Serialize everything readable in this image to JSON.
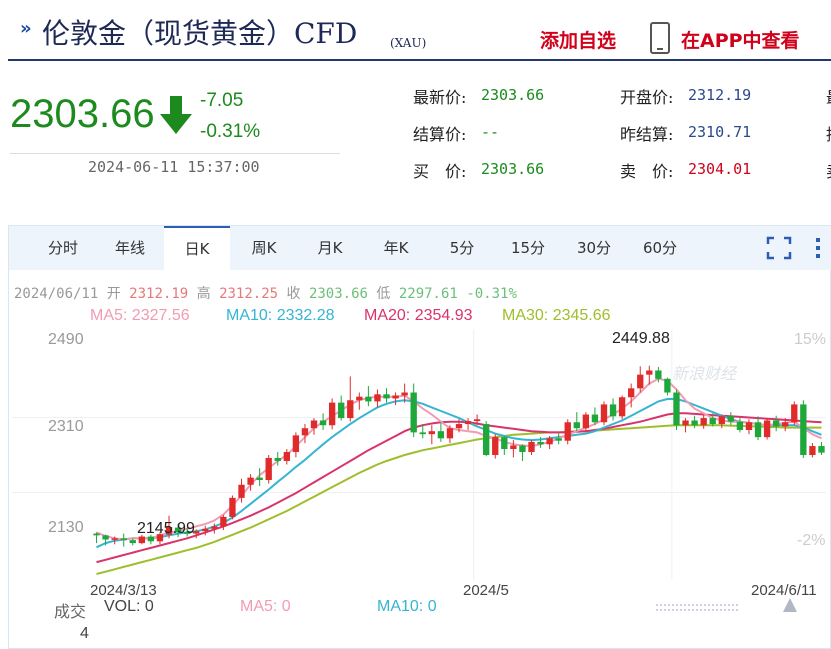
{
  "header": {
    "title": "伦敦金（现货黄金）CFD",
    "title_suffix": "(XAU)",
    "add_watchlist": "添加自选",
    "view_in_app": "在APP中查看"
  },
  "price": {
    "last": "2303.66",
    "change": "-7.05",
    "change_pct": "-0.31%",
    "timestamp": "2024-06-11 15:37:00",
    "direction": "down",
    "down_color": "#1c8a1c"
  },
  "quotes": [
    {
      "label": "最新价:",
      "value": "2303.66"
    },
    {
      "label": "结算价:",
      "value": "--"
    },
    {
      "label": "买　价:",
      "value": "2303.66"
    },
    {
      "label": "开盘价:",
      "value": "2312.19"
    },
    {
      "label": "昨结算:",
      "value": "2310.71"
    },
    {
      "label": "卖　价:",
      "value": "2304.01"
    }
  ],
  "quote_edge": [
    "最",
    "持",
    "卖"
  ],
  "tabs": [
    "分时",
    "年线",
    "日K",
    "周K",
    "月K",
    "年K",
    "5分",
    "15分",
    "30分",
    "60分"
  ],
  "active_tab": "日K",
  "icons": {
    "fullscreen": "fullscreen-icon",
    "more": "more-icon"
  },
  "legend": {
    "date": "2024/06/11",
    "open_label": "开",
    "open": "2312.19",
    "high_label": "高",
    "high": "2312.25",
    "close_label": "收",
    "close": "2303.66",
    "low_label": "低",
    "low": "2297.61",
    "pct": "-0.31%"
  },
  "ma_legend": [
    {
      "text": "MA5: 2327.56",
      "color": "#f29bb3"
    },
    {
      "text": "MA10: 2332.28",
      "color": "#35b5d2"
    },
    {
      "text": "MA20: 2354.93",
      "color": "#d9336b"
    },
    {
      "text": "MA30: 2345.66",
      "color": "#9fbe2c"
    }
  ],
  "watermark": "新浪财经",
  "volume_legend": {
    "label": "成交",
    "vol": "VOL: 0",
    "ma5": "MA5: 0",
    "ma10": "MA10: 0",
    "ma5_color": "#f29bb3",
    "ma10_color": "#35b5d2",
    "axis_max": "4"
  },
  "colors": {
    "up": "#e02b2b",
    "down": "#1ea83c",
    "accent": "#2c5fb3"
  },
  "chart_data": {
    "type": "candlestick",
    "y_ticks": [
      "2490",
      "2310",
      "2130"
    ],
    "pct_ticks": [
      "15%",
      "-2%"
    ],
    "ylim": [
      2090,
      2510
    ],
    "x_labels": [
      "2024/3/13",
      "2024/5",
      "2024/6/11"
    ],
    "annotations": {
      "high": "2449.88",
      "low": "2145.99"
    },
    "candles": [
      [
        2168,
        2170,
        2152,
        2165
      ],
      [
        2165,
        2166,
        2148,
        2158
      ],
      [
        2158,
        2163,
        2150,
        2160
      ],
      [
        2160,
        2168,
        2146,
        2157
      ],
      [
        2157,
        2160,
        2148,
        2152
      ],
      [
        2152,
        2166,
        2150,
        2163
      ],
      [
        2163,
        2166,
        2150,
        2155
      ],
      [
        2155,
        2170,
        2150,
        2167
      ],
      [
        2166,
        2198,
        2160,
        2179
      ],
      [
        2178,
        2184,
        2162,
        2170
      ],
      [
        2170,
        2178,
        2163,
        2168
      ],
      [
        2168,
        2175,
        2160,
        2172
      ],
      [
        2172,
        2181,
        2165,
        2176
      ],
      [
        2176,
        2185,
        2168,
        2180
      ],
      [
        2180,
        2199,
        2174,
        2196
      ],
      [
        2196,
        2232,
        2192,
        2228
      ],
      [
        2228,
        2260,
        2220,
        2250
      ],
      [
        2250,
        2268,
        2240,
        2262
      ],
      [
        2262,
        2278,
        2248,
        2258
      ],
      [
        2258,
        2300,
        2252,
        2295
      ],
      [
        2295,
        2305,
        2282,
        2290
      ],
      [
        2290,
        2310,
        2284,
        2305
      ],
      [
        2305,
        2338,
        2296,
        2333
      ],
      [
        2333,
        2352,
        2320,
        2345
      ],
      [
        2345,
        2362,
        2334,
        2358
      ],
      [
        2358,
        2370,
        2342,
        2350
      ],
      [
        2350,
        2395,
        2343,
        2388
      ],
      [
        2388,
        2400,
        2358,
        2362
      ],
      [
        2362,
        2432,
        2356,
        2392
      ],
      [
        2392,
        2405,
        2376,
        2398
      ],
      [
        2398,
        2416,
        2382,
        2390
      ],
      [
        2390,
        2410,
        2380,
        2402
      ],
      [
        2402,
        2412,
        2388,
        2395
      ],
      [
        2395,
        2405,
        2384,
        2400
      ],
      [
        2400,
        2420,
        2388,
        2405
      ],
      [
        2405,
        2420,
        2330,
        2338
      ],
      [
        2338,
        2352,
        2328,
        2335
      ],
      [
        2335,
        2350,
        2318,
        2340
      ],
      [
        2340,
        2355,
        2322,
        2328
      ],
      [
        2328,
        2350,
        2320,
        2345
      ],
      [
        2345,
        2360,
        2338,
        2352
      ],
      [
        2352,
        2362,
        2342,
        2357
      ],
      [
        2357,
        2368,
        2350,
        2360
      ],
      [
        2352,
        2357,
        2298,
        2300
      ],
      [
        2300,
        2335,
        2294,
        2330
      ],
      [
        2330,
        2332,
        2300,
        2310
      ],
      [
        2310,
        2325,
        2296,
        2316
      ],
      [
        2316,
        2318,
        2290,
        2305
      ],
      [
        2305,
        2325,
        2300,
        2322
      ],
      [
        2322,
        2330,
        2312,
        2318
      ],
      [
        2318,
        2332,
        2310,
        2328
      ],
      [
        2328,
        2336,
        2318,
        2324
      ],
      [
        2324,
        2360,
        2318,
        2355
      ],
      [
        2355,
        2372,
        2340,
        2345
      ],
      [
        2345,
        2372,
        2340,
        2368
      ],
      [
        2368,
        2380,
        2350,
        2355
      ],
      [
        2355,
        2390,
        2350,
        2385
      ],
      [
        2385,
        2395,
        2358,
        2365
      ],
      [
        2365,
        2400,
        2360,
        2397
      ],
      [
        2397,
        2420,
        2380,
        2412
      ],
      [
        2412,
        2449,
        2405,
        2435
      ],
      [
        2435,
        2450,
        2418,
        2442
      ],
      [
        2442,
        2448,
        2422,
        2428
      ],
      [
        2428,
        2430,
        2400,
        2405
      ],
      [
        2405,
        2410,
        2342,
        2350
      ],
      [
        2350,
        2362,
        2338,
        2358
      ],
      [
        2358,
        2366,
        2345,
        2350
      ],
      [
        2350,
        2368,
        2344,
        2362
      ],
      [
        2362,
        2370,
        2348,
        2352
      ],
      [
        2352,
        2368,
        2345,
        2365
      ],
      [
        2365,
        2372,
        2350,
        2356
      ],
      [
        2356,
        2362,
        2338,
        2342
      ],
      [
        2342,
        2360,
        2335,
        2355
      ],
      [
        2355,
        2365,
        2325,
        2330
      ],
      [
        2330,
        2362,
        2326,
        2358
      ],
      [
        2358,
        2366,
        2340,
        2348
      ],
      [
        2348,
        2362,
        2340,
        2355
      ],
      [
        2355,
        2390,
        2350,
        2385
      ],
      [
        2385,
        2392,
        2295,
        2300
      ],
      [
        2300,
        2320,
        2296,
        2315
      ],
      [
        2315,
        2322,
        2300,
        2304
      ]
    ],
    "ma5": [
      2170,
      2164,
      2160,
      2158,
      2160,
      2159,
      2160,
      2165,
      2170,
      2172,
      2176,
      2180,
      2184,
      2190,
      2200,
      2215,
      2232,
      2250,
      2266,
      2278,
      2290,
      2300,
      2315,
      2330,
      2345,
      2356,
      2365,
      2375,
      2385,
      2392,
      2396,
      2398,
      2398,
      2398,
      2400,
      2390,
      2378,
      2368,
      2356,
      2345,
      2342,
      2340,
      2338,
      2332,
      2328,
      2322,
      2318,
      2316,
      2315,
      2318,
      2322,
      2328,
      2334,
      2340,
      2346,
      2352,
      2360,
      2368,
      2378,
      2390,
      2405,
      2420,
      2428,
      2425,
      2410,
      2392,
      2378,
      2370,
      2362,
      2358,
      2356,
      2356,
      2354,
      2352,
      2350,
      2352,
      2354,
      2356,
      2345,
      2335,
      2328
    ],
    "ma10": [
      2145,
      2152,
      2156,
      2158,
      2160,
      2160,
      2160,
      2162,
      2165,
      2168,
      2170,
      2172,
      2175,
      2180,
      2186,
      2195,
      2206,
      2218,
      2230,
      2242,
      2255,
      2267,
      2280,
      2292,
      2305,
      2318,
      2330,
      2341,
      2352,
      2362,
      2371,
      2380,
      2386,
      2390,
      2392,
      2390,
      2386,
      2380,
      2374,
      2368,
      2362,
      2355,
      2348,
      2342,
      2336,
      2332,
      2328,
      2326,
      2325,
      2326,
      2328,
      2330,
      2332,
      2334,
      2336,
      2340,
      2346,
      2352,
      2358,
      2366,
      2374,
      2382,
      2390,
      2394,
      2394,
      2390,
      2384,
      2378,
      2372,
      2366,
      2360,
      2356,
      2354,
      2352,
      2350,
      2350,
      2350,
      2350,
      2346,
      2340,
      2334
    ],
    "ma20": [
      2120,
      2124,
      2128,
      2132,
      2136,
      2140,
      2144,
      2148,
      2152,
      2156,
      2160,
      2165,
      2170,
      2175,
      2180,
      2186,
      2192,
      2198,
      2205,
      2212,
      2220,
      2228,
      2236,
      2245,
      2254,
      2263,
      2272,
      2281,
      2290,
      2299,
      2308,
      2316,
      2324,
      2332,
      2340,
      2346,
      2350,
      2353,
      2355,
      2356,
      2356,
      2355,
      2353,
      2350,
      2348,
      2346,
      2344,
      2342,
      2340,
      2339,
      2338,
      2338,
      2338,
      2339,
      2340,
      2342,
      2344,
      2347,
      2350,
      2353,
      2356,
      2360,
      2364,
      2368,
      2370,
      2370,
      2369,
      2368,
      2367,
      2366,
      2365,
      2364,
      2363,
      2362,
      2361,
      2360,
      2359,
      2358,
      2357,
      2356,
      2355
    ],
    "ma30": [
      2100,
      2104,
      2108,
      2112,
      2116,
      2120,
      2124,
      2128,
      2132,
      2136,
      2140,
      2144,
      2149,
      2154,
      2160,
      2166,
      2172,
      2178,
      2185,
      2192,
      2199,
      2206,
      2214,
      2222,
      2230,
      2238,
      2246,
      2254,
      2262,
      2270,
      2277,
      2284,
      2290,
      2295,
      2300,
      2304,
      2308,
      2311,
      2314,
      2317,
      2320,
      2323,
      2326,
      2328,
      2330,
      2332,
      2334,
      2335,
      2336,
      2337,
      2338,
      2338,
      2339,
      2340,
      2340,
      2341,
      2342,
      2343,
      2344,
      2345,
      2346,
      2347,
      2348,
      2349,
      2350,
      2350,
      2350,
      2350,
      2350,
      2350,
      2349,
      2349,
      2348,
      2348,
      2347,
      2347,
      2346,
      2346,
      2346,
      2346,
      2346
    ]
  }
}
